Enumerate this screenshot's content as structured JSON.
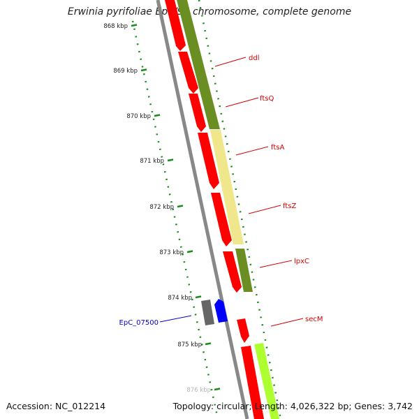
{
  "title": "Erwinia pyrifoliae Ep1/96 chromosome, complete genome",
  "footer": {
    "accession": "Accession: NC_012214",
    "stats": "Topology: circular; Length: 4,026,322 bp; Genes: 3,742"
  },
  "ticks": [
    "868 kbp",
    "869 kbp",
    "870 kbp",
    "871 kbp",
    "872 kbp",
    "873 kbp",
    "874 kbp",
    "875 kbp",
    "876 kbp"
  ],
  "genes": [
    {
      "name": "ddl",
      "color": "#d40000"
    },
    {
      "name": "ftsQ",
      "color": "#d40000"
    },
    {
      "name": "ftsA",
      "color": "#d40000"
    },
    {
      "name": "ftsZ",
      "color": "#d40000"
    },
    {
      "name": "lpxC",
      "color": "#d40000"
    },
    {
      "name": "secM",
      "color": "#d40000"
    },
    {
      "name": "EpC_07500",
      "color": "#0000cc"
    }
  ],
  "colors": {
    "cds": "#ff0000",
    "olive": "#6b8e23",
    "pale_yellow": "#f0e68c",
    "lime": "#adff2f",
    "gray_gene": "#666666",
    "blue_gene": "#0000ff",
    "dots": "#1a8a1a",
    "backbone": "#888888"
  }
}
